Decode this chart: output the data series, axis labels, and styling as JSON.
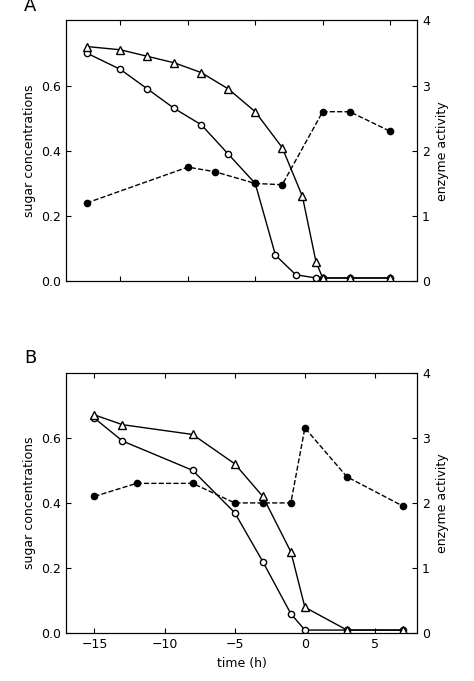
{
  "panel_A": {
    "label": "A",
    "circle_open": {
      "x": [
        -17.5,
        -15,
        -13,
        -11,
        -9,
        -7,
        -5,
        -3.5,
        -2,
        -0.5,
        0,
        2,
        5
      ],
      "y": [
        0.7,
        0.65,
        0.59,
        0.53,
        0.48,
        0.39,
        0.3,
        0.08,
        0.02,
        0.01,
        0.01,
        0.01,
        0.01
      ]
    },
    "triangle_open": {
      "x": [
        -17.5,
        -15,
        -13,
        -11,
        -9,
        -7,
        -5,
        -3,
        -1.5,
        -0.5,
        0,
        2,
        5
      ],
      "y": [
        0.72,
        0.71,
        0.69,
        0.67,
        0.64,
        0.59,
        0.52,
        0.41,
        0.26,
        0.06,
        0.01,
        0.01,
        0.01
      ]
    },
    "circle_filled": {
      "x": [
        -17.5,
        -10,
        -8,
        -5,
        -3,
        0,
        2,
        5
      ],
      "y_right": [
        1.2,
        1.75,
        1.68,
        1.5,
        1.48,
        2.6,
        2.6,
        2.3
      ]
    },
    "xlim": [
      -19,
      7
    ],
    "xticks": [
      -15,
      -10,
      -5,
      0,
      5
    ]
  },
  "panel_B": {
    "label": "B",
    "circle_open": {
      "x": [
        -15,
        -13,
        -8,
        -5,
        -3,
        -1,
        0,
        3,
        7
      ],
      "y": [
        0.66,
        0.59,
        0.5,
        0.37,
        0.22,
        0.06,
        0.01,
        0.01,
        0.01
      ]
    },
    "triangle_open": {
      "x": [
        -15,
        -13,
        -8,
        -5,
        -3,
        -1,
        0,
        3,
        7
      ],
      "y": [
        0.67,
        0.64,
        0.61,
        0.52,
        0.42,
        0.25,
        0.08,
        0.01,
        0.01
      ]
    },
    "circle_filled": {
      "x": [
        -15,
        -12,
        -8,
        -5,
        -3,
        -1,
        0,
        3,
        7
      ],
      "y_right": [
        2.1,
        2.3,
        2.3,
        2.0,
        2.0,
        2.0,
        3.15,
        2.4,
        1.95
      ]
    },
    "xlim": [
      -17,
      8
    ],
    "xticks": [
      -15,
      -10,
      -5,
      0,
      5
    ]
  },
  "ylim_left": [
    0.0,
    0.8
  ],
  "yticks_left": [
    0.0,
    0.2,
    0.4,
    0.6
  ],
  "ylim_right": [
    0,
    4
  ],
  "yticks_right": [
    0,
    1,
    2,
    3,
    4
  ],
  "xlabel": "time (h)",
  "ylabel_left": "sugar concentrations",
  "ylabel_right": "enzyme activity",
  "background_color": "#ffffff"
}
